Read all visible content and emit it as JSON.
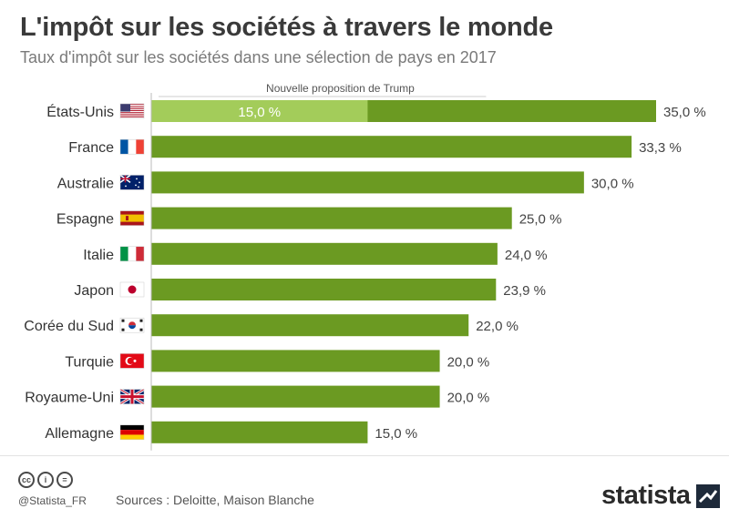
{
  "header": {
    "title": "L'impôt sur les sociétés à travers le monde",
    "subtitle": "Taux d'impôt sur les sociétés dans une sélection de pays en 2017"
  },
  "footer": {
    "handle": "@Statista_FR",
    "source": "Sources : Deloitte, Maison Blanche",
    "brand": "statista",
    "cc_icons": [
      "cc-icon",
      "by-icon",
      "nd-icon"
    ]
  },
  "colors": {
    "bar": "#6b9a22",
    "highlight": "#a3cc5a",
    "axis": "#bbbbbb",
    "label": "#333333",
    "value": "#444444"
  },
  "chart_data": {
    "type": "bar",
    "orientation": "horizontal",
    "categories": [
      "États-Unis",
      "France",
      "Australie",
      "Espagne",
      "Italie",
      "Japon",
      "Corée du Sud",
      "Turquie",
      "Royaume-Uni",
      "Allemagne"
    ],
    "flags": [
      "flag-us-icon",
      "flag-fr-icon",
      "flag-au-icon",
      "flag-es-icon",
      "flag-it-icon",
      "flag-jp-icon",
      "flag-kr-icon",
      "flag-tr-icon",
      "flag-gb-icon",
      "flag-de-icon"
    ],
    "values": [
      35.0,
      33.3,
      30.0,
      25.0,
      24.0,
      23.9,
      22.0,
      20.0,
      20.0,
      15.0
    ],
    "value_labels": [
      "35,0 %",
      "33,3 %",
      "30,0 %",
      "25,0 %",
      "24,0 %",
      "23,9 %",
      "22,0 %",
      "20,0 %",
      "20,0 %",
      "15,0 %"
    ],
    "xlim": [
      0,
      35
    ],
    "annotation": {
      "category": "États-Unis",
      "label": "Nouvelle proposition de Trump",
      "value": 15.0,
      "value_label": "15,0 %"
    }
  }
}
